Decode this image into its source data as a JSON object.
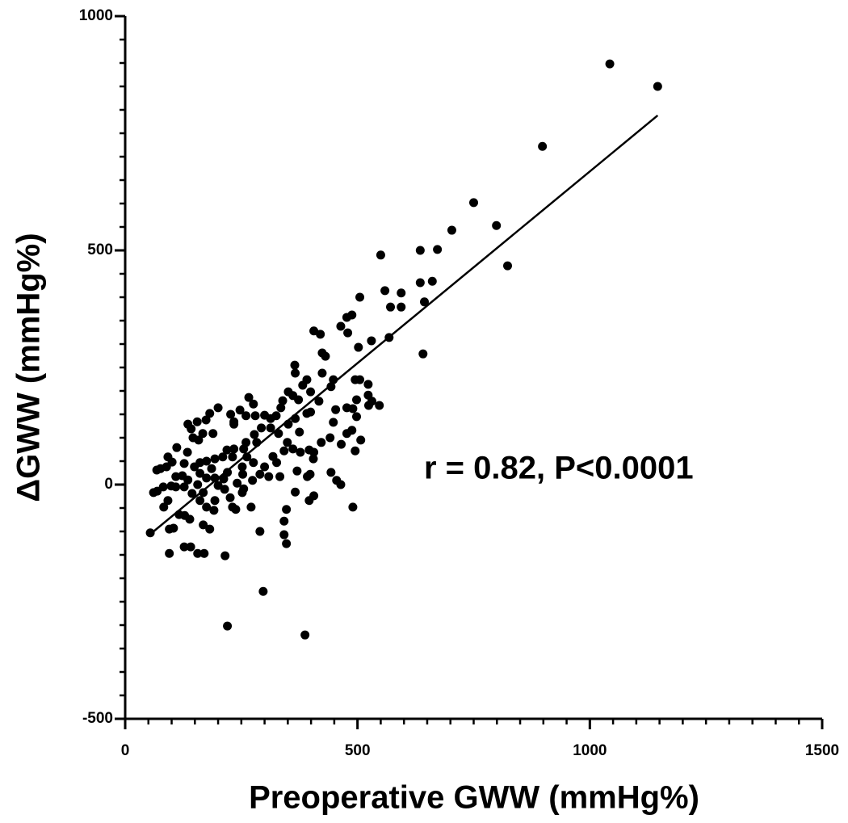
{
  "chart_data": {
    "type": "scatter",
    "xlabel": "Preoperative GWW (mmHg%)",
    "ylabel": "ΔGWW (mmHg%)",
    "annotation": "r = 0.82, P<0.0001",
    "color": "#000000",
    "xlim": [
      0,
      1500
    ],
    "ylim": [
      -500,
      1000
    ],
    "xticks": [
      0,
      500,
      1000,
      1500
    ],
    "yticks": [
      -500,
      0,
      500,
      1000
    ],
    "xminorticks": [
      0,
      50,
      100,
      150,
      200,
      250,
      300,
      350,
      400,
      450,
      500,
      550,
      600,
      650,
      700,
      750,
      800,
      850,
      900,
      950,
      1000,
      1050,
      1100,
      1150,
      1200,
      1250,
      1300,
      1350,
      1400,
      1450,
      1500
    ],
    "yminorticks": [
      -500,
      -450,
      -400,
      -350,
      -300,
      -250,
      -200,
      -150,
      -100,
      -50,
      0,
      50,
      100,
      150,
      200,
      250,
      300,
      350,
      400,
      450,
      500,
      550,
      600,
      650,
      700,
      750,
      800,
      850,
      900,
      950,
      1000
    ],
    "x": [
      1043,
      1146,
      898,
      750,
      799,
      703,
      823,
      672,
      635,
      550,
      661,
      635,
      559,
      594,
      571,
      594,
      644,
      505,
      488,
      477,
      464,
      479,
      530,
      568,
      406,
      420,
      424,
      431,
      502,
      641,
      547,
      424,
      365,
      366,
      391,
      382,
      399,
      448,
      443,
      495,
      505,
      523,
      523,
      524,
      531,
      498,
      477,
      490,
      498,
      453,
      417,
      399,
      391,
      373,
      361,
      351,
      339,
      335,
      325,
      313,
      300,
      280,
      260,
      234,
      266,
      276,
      247,
      227,
      234,
      200,
      182,
      174,
      155,
      135,
      142,
      167,
      189,
      158,
      146,
      293,
      313,
      330,
      351,
      366,
      375,
      349,
      361,
      377,
      396,
      406,
      405,
      422,
      441,
      465,
      477,
      448,
      488,
      495,
      507,
      392,
      398,
      406,
      396,
      443,
      455,
      464,
      490,
      366,
      347,
      342,
      342,
      347,
      326,
      318,
      300,
      290,
      309,
      333,
      276,
      262,
      255,
      283,
      234,
      219,
      210,
      193,
      175,
      161,
      149,
      127,
      111,
      134,
      101,
      89,
      76,
      68,
      92,
      109,
      123,
      135,
      161,
      175,
      193,
      212,
      200,
      241,
      255,
      252,
      231,
      253,
      186,
      168,
      144,
      161,
      175,
      191,
      214,
      226,
      238,
      252,
      271,
      290,
      231,
      193,
      99,
      109,
      82,
      69,
      61,
      92,
      83,
      116,
      128,
      139,
      104,
      95,
      54,
      168,
      182,
      141,
      127,
      156,
      170,
      95,
      215,
      220,
      297,
      387,
      220,
      274,
      156,
      127,
      278,
      260,
      342,
      370
    ],
    "values": [
      898,
      850,
      722,
      602,
      553,
      543,
      467,
      502,
      500,
      490,
      434,
      431,
      414,
      409,
      379,
      379,
      390,
      400,
      362,
      357,
      338,
      324,
      307,
      314,
      328,
      321,
      281,
      274,
      293,
      279,
      169,
      238,
      255,
      238,
      224,
      212,
      198,
      224,
      209,
      224,
      224,
      214,
      191,
      169,
      178,
      181,
      164,
      162,
      145,
      160,
      178,
      155,
      152,
      181,
      190,
      198,
      179,
      164,
      147,
      141,
      148,
      147,
      147,
      134,
      186,
      172,
      159,
      150,
      129,
      164,
      152,
      138,
      134,
      129,
      119,
      109,
      109,
      95,
      100,
      121,
      121,
      109,
      129,
      141,
      112,
      90,
      76,
      69,
      74,
      69,
      55,
      90,
      100,
      86,
      109,
      133,
      116,
      72,
      95,
      17,
      22,
      -24,
      -34,
      26,
      9,
      0,
      -48,
      -16,
      -53,
      -78,
      -107,
      -126,
      47,
      60,
      38,
      22,
      17,
      17,
      47,
      59,
      76,
      90,
      76,
      74,
      59,
      55,
      50,
      47,
      38,
      45,
      79,
      69,
      48,
      38,
      34,
      31,
      59,
      17,
      19,
      10,
      24,
      14,
      14,
      12,
      -2,
      3,
      -9,
      38,
      59,
      22,
      34,
      -17,
      -19,
      -34,
      -48,
      -55,
      -10,
      -28,
      -53,
      -17,
      -48,
      -100,
      -48,
      -34,
      -3,
      -5,
      -5,
      -14,
      -17,
      -34,
      -48,
      -64,
      -66,
      -74,
      -93,
      -95,
      -103,
      -86,
      -95,
      -133,
      -133,
      -147,
      -147,
      -147,
      -152,
      -302,
      -228,
      -321,
      26,
      9,
      0,
      -5,
      107,
      90,
      72,
      29
    ],
    "fit": {
      "x": [
        55,
        1146
      ],
      "values": [
        -105,
        788
      ]
    }
  }
}
